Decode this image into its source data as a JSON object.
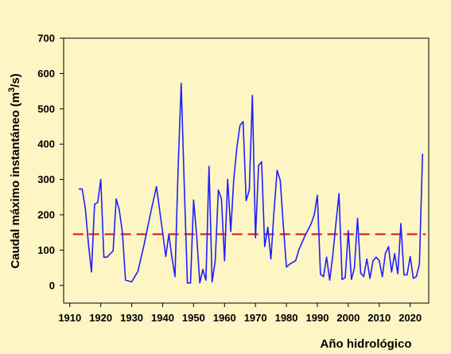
{
  "chart_data": {
    "type": "line",
    "xlabel": "Año hidrológico",
    "ylabel_main": "Caudal máximo instantáneo (m",
    "ylabel_sup": "3",
    "ylabel_end": "/s)",
    "xlim": [
      1908,
      2026
    ],
    "ylim": [
      -50,
      700
    ],
    "xticks": [
      1910,
      1920,
      1930,
      1940,
      1950,
      1960,
      1970,
      1980,
      1990,
      2000,
      2010,
      2020
    ],
    "yticks": [
      0,
      100,
      200,
      300,
      400,
      500,
      600,
      700
    ],
    "grid": false,
    "series": [
      {
        "color": "#1f1fff",
        "x": [
          1913,
          1914,
          1915,
          1916,
          1917,
          1918,
          1919,
          1920,
          1921,
          1922,
          1924,
          1925,
          1926,
          1927,
          1928,
          1930,
          1932,
          1934,
          1936,
          1938,
          1940,
          1941,
          1942,
          1943,
          1944,
          1945,
          1946,
          1947,
          1948,
          1949,
          1950,
          1951,
          1952,
          1953,
          1954,
          1955,
          1956,
          1957,
          1958,
          1959,
          1960,
          1961,
          1962,
          1963,
          1964,
          1965,
          1966,
          1967,
          1968,
          1969,
          1970,
          1971,
          1972,
          1973,
          1974,
          1975,
          1976,
          1977,
          1978,
          1979,
          1980,
          1981,
          1983,
          1984,
          1986,
          1988,
          1989,
          1990,
          1991,
          1992,
          1993,
          1994,
          1995,
          1996,
          1997,
          1998,
          1999,
          2000,
          2001,
          2002,
          2003,
          2004,
          2005,
          2006,
          2007,
          2008,
          2009,
          2010,
          2011,
          2012,
          2013,
          2014,
          2015,
          2016,
          2017,
          2018,
          2019,
          2020,
          2021,
          2022,
          2023,
          2024
        ],
        "y": [
          273,
          273,
          220,
          120,
          38,
          230,
          235,
          300,
          80,
          80,
          98,
          245,
          213,
          150,
          15,
          10,
          40,
          115,
          200,
          280,
          150,
          82,
          145,
          80,
          25,
          330,
          572,
          280,
          7,
          7,
          242,
          140,
          7,
          45,
          15,
          337,
          10,
          70,
          270,
          245,
          70,
          300,
          153,
          300,
          390,
          453,
          464,
          240,
          270,
          538,
          135,
          340,
          350,
          110,
          165,
          75,
          210,
          326,
          298,
          170,
          52,
          60,
          70,
          100,
          140,
          175,
          200,
          255,
          32,
          25,
          80,
          15,
          85,
          175,
          260,
          17,
          22,
          155,
          17,
          50,
          190,
          35,
          25,
          75,
          20,
          70,
          80,
          70,
          25,
          90,
          110,
          38,
          90,
          33,
          175,
          30,
          30,
          82,
          20,
          25,
          60,
          372
        ]
      }
    ],
    "reference_line": {
      "y": 145,
      "color": "#e01a1a",
      "style": "dashed"
    }
  }
}
